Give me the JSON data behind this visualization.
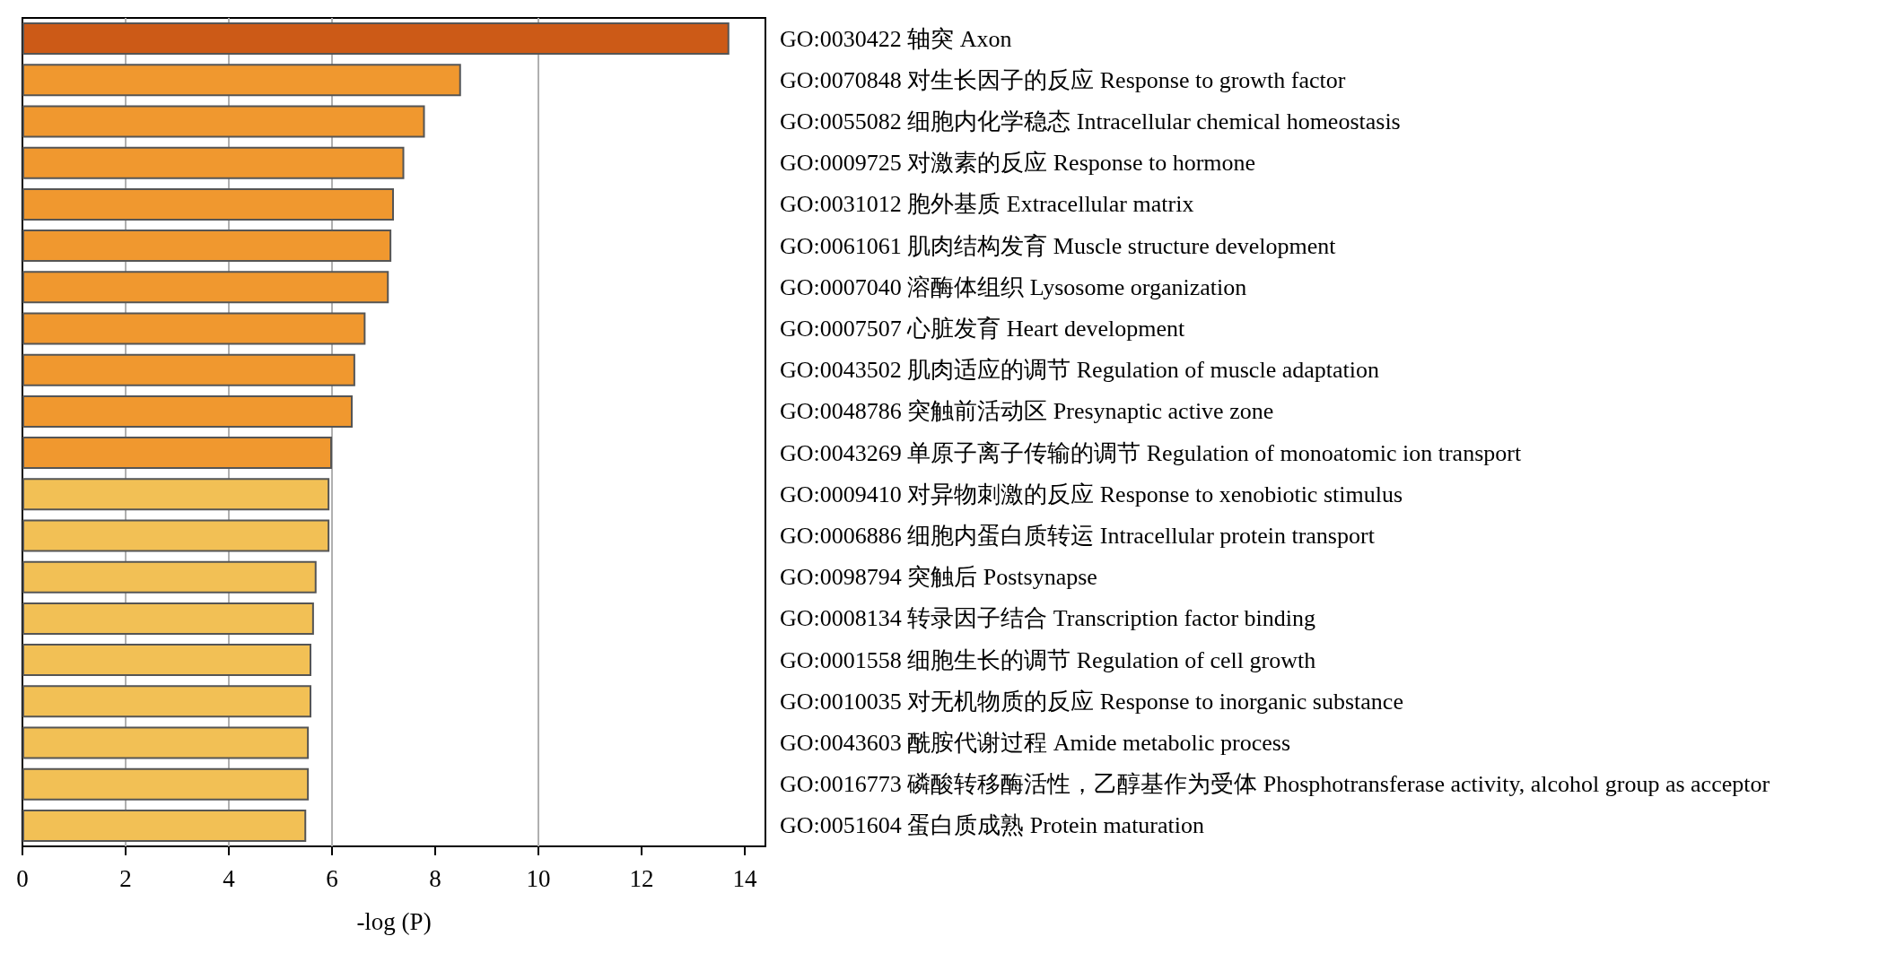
{
  "chart_data": {
    "type": "bar",
    "orientation": "horizontal",
    "xlabel": "-log (P)",
    "categories": [
      "GO:0030422 轴突 Axon",
      "GO:0070848 对生长因子的反应 Response to growth factor",
      "GO:0055082 细胞内化学稳态 Intracellular chemical homeostasis",
      "GO:0009725 对激素的反应 Response to hormone",
      "GO:0031012 胞外基质 Extracellular matrix",
      "GO:0061061 肌肉结构发育 Muscle structure development",
      "GO:0007040 溶酶体组织 Lysosome organization",
      "GO:0007507 心脏发育 Heart development",
      "GO:0043502 肌肉适应的调节 Regulation of muscle adaptation",
      "GO:0048786 突触前活动区 Presynaptic active zone",
      "GO:0043269 单原子离子传输的调节 Regulation of monoatomic ion transport",
      "GO:0009410 对异物刺激的反应 Response to xenobiotic stimulus",
      "GO:0006886 细胞内蛋白质转运 Intracellular protein transport",
      "GO:0098794 突触后 Postsynapse",
      "GO:0008134 转录因子结合 Transcription factor binding",
      "GO:0001558 细胞生长的调节 Regulation of cell growth",
      "GO:0010035 对无机物质的反应 Response to inorganic substance",
      "GO:0043603 酰胺代谢过程 Amide metabolic process",
      "GO:0016773 磷酸转移酶活性，乙醇基作为受体 Phosphotransferase activity, alcohol group as acceptor",
      "GO:0051604 蛋白质成熟 Protein maturation"
    ],
    "values": [
      13.7,
      8.5,
      7.8,
      7.4,
      7.2,
      7.15,
      7.1,
      6.65,
      6.45,
      6.4,
      6.0,
      5.95,
      5.95,
      5.7,
      5.65,
      5.6,
      5.6,
      5.55,
      5.55,
      5.5
    ],
    "colors": [
      "#cc5a17",
      "#f0982f",
      "#f0982f",
      "#f0982f",
      "#f0982f",
      "#f0982f",
      "#f0982f",
      "#f0982f",
      "#f0982f",
      "#f0982f",
      "#f0982f",
      "#f2c055",
      "#f2c055",
      "#f2c055",
      "#f2c055",
      "#f2c055",
      "#f2c055",
      "#f2c055",
      "#f2c055",
      "#f2c055"
    ],
    "xlim": [
      0,
      14.4
    ],
    "xticks": [
      0,
      2,
      4,
      6,
      8,
      10,
      12,
      14
    ],
    "ref_lines": [
      {
        "axis": "x",
        "value": 2,
        "color": "#b0b0b0"
      },
      {
        "axis": "x",
        "value": 4,
        "color": "#b0b0b0"
      },
      {
        "axis": "x",
        "value": 6,
        "color": "#b0b0b0"
      },
      {
        "axis": "x",
        "value": 10,
        "color": "#b0b0b0"
      }
    ]
  }
}
